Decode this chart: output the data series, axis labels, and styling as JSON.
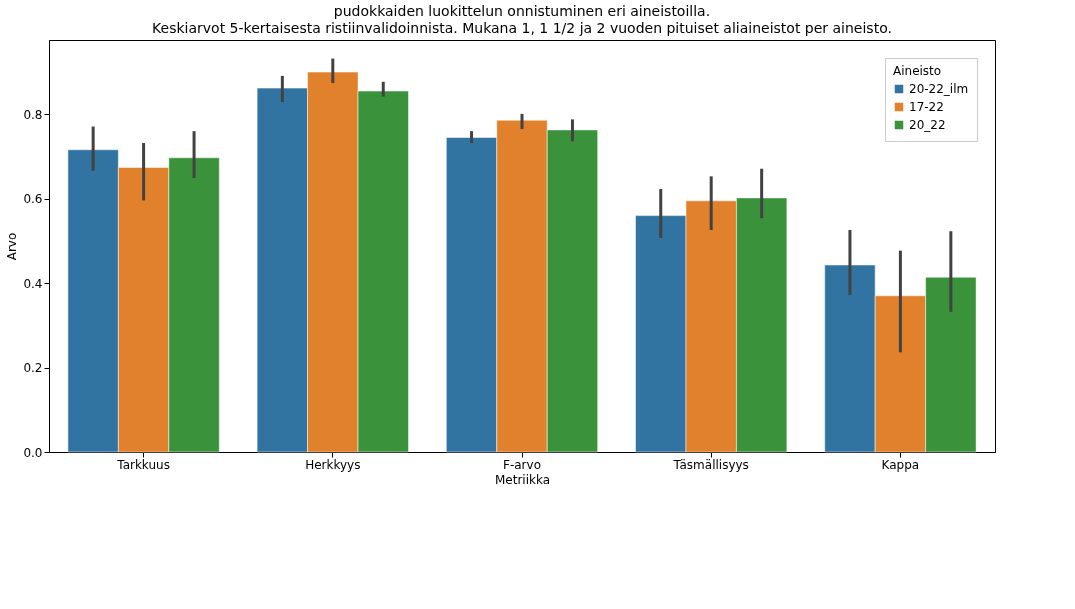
{
  "chart_data": {
    "type": "bar",
    "title": "pudokkaiden luokittelun onnistuminen eri aineistoilla.",
    "subtitle": "Keskiarvot 5-kertaisesta ristiinvalidoinnista. Mukana 1, 1 1/2 ja 2 vuoden pituiset aliaineistot per aineisto.",
    "xlabel": "Metriikka",
    "ylabel": "Arvo",
    "legend_title": "Aineisto",
    "legend": "top right",
    "grid": false,
    "categories": [
      "Tarkkuus",
      "Herkkyys",
      "F-arvo",
      "Täsmällisyys",
      "Kappa"
    ],
    "ylim": [
      0,
      0.976
    ],
    "yticks": [
      {
        "value": 0,
        "label": "0.0"
      },
      0.2,
      0.4,
      0.6,
      0.8
    ],
    "series": [
      {
        "name": "20-22_ilm",
        "color": "#3274a1",
        "values": [
          0.716,
          0.862,
          0.745,
          0.56,
          0.443
        ],
        "errors": [
          [
            0.666,
            0.771
          ],
          [
            0.829,
            0.891
          ],
          [
            0.732,
            0.76
          ],
          [
            0.507,
            0.623
          ],
          [
            0.372,
            0.526
          ]
        ]
      },
      {
        "name": "17-22",
        "color": "#e1812c",
        "values": [
          0.674,
          0.9,
          0.786,
          0.595,
          0.37
        ],
        "errors": [
          [
            0.596,
            0.732
          ],
          [
            0.874,
            0.932
          ],
          [
            0.765,
            0.801
          ],
          [
            0.526,
            0.653
          ],
          [
            0.236,
            0.477
          ]
        ]
      },
      {
        "name": "20_22",
        "color": "#3a923a",
        "values": [
          0.697,
          0.855,
          0.763,
          0.602,
          0.414
        ],
        "errors": [
          [
            0.649,
            0.76
          ],
          [
            0.842,
            0.877
          ],
          [
            0.736,
            0.788
          ],
          [
            0.554,
            0.671
          ],
          [
            0.332,
            0.523
          ]
        ]
      }
    ]
  }
}
